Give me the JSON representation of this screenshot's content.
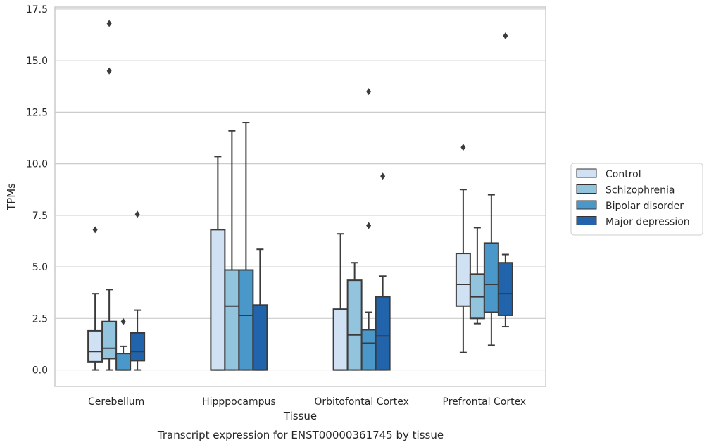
{
  "chart_data": {
    "type": "boxplot",
    "title": "",
    "caption": "Transcript expression for ENST00000361745 by tissue",
    "xlabel": "Tissue",
    "ylabel": "TPMs",
    "ylim": [
      -0.8,
      17.6
    ],
    "yticks": [
      "0.0",
      "2.5",
      "5.0",
      "7.5",
      "10.0",
      "12.5",
      "15.0",
      "17.5"
    ],
    "grid": "horizontal",
    "legend_placement": "right",
    "categories": [
      "Cerebellum",
      "Hipppocampus",
      "Orbitofontal Cortex",
      "Prefrontal Cortex"
    ],
    "series": [
      {
        "name": "Control",
        "color": "#cfe1f2",
        "boxes": [
          {
            "whisker_low": 0.0,
            "q1": 0.4,
            "median": 0.9,
            "q3": 1.9,
            "whisker_high": 3.7,
            "outliers": [
              6.8
            ]
          },
          {
            "whisker_low": 0.0,
            "q1": 0.0,
            "median": 0.0,
            "q3": 6.8,
            "whisker_high": 10.35,
            "outliers": []
          },
          {
            "whisker_low": 0.0,
            "q1": 0.0,
            "median": 0.0,
            "q3": 2.95,
            "whisker_high": 6.6,
            "outliers": []
          },
          {
            "whisker_low": 0.85,
            "q1": 3.1,
            "median": 4.15,
            "q3": 5.65,
            "whisker_high": 8.75,
            "outliers": [
              10.8
            ]
          }
        ]
      },
      {
        "name": "Schizophrenia",
        "color": "#93c4de",
        "boxes": [
          {
            "whisker_low": 0.0,
            "q1": 0.55,
            "median": 1.05,
            "q3": 2.35,
            "whisker_high": 3.9,
            "outliers": [
              16.8,
              14.5
            ]
          },
          {
            "whisker_low": 0.0,
            "q1": 0.0,
            "median": 3.1,
            "q3": 4.85,
            "whisker_high": 11.6,
            "outliers": []
          },
          {
            "whisker_low": 0.0,
            "q1": 0.0,
            "median": 1.7,
            "q3": 4.35,
            "whisker_high": 5.2,
            "outliers": []
          },
          {
            "whisker_low": 2.25,
            "q1": 2.5,
            "median": 3.55,
            "q3": 4.65,
            "whisker_high": 6.9,
            "outliers": []
          }
        ]
      },
      {
        "name": "Bipolar disorder",
        "color": "#4a98c9",
        "boxes": [
          {
            "whisker_low": 0.0,
            "q1": 0.0,
            "median": 0.0,
            "q3": 0.8,
            "whisker_high": 1.15,
            "outliers": [
              2.35
            ]
          },
          {
            "whisker_low": 0.0,
            "q1": 0.0,
            "median": 2.65,
            "q3": 4.85,
            "whisker_high": 12.0,
            "outliers": []
          },
          {
            "whisker_low": 0.0,
            "q1": 0.0,
            "median": 1.3,
            "q3": 1.95,
            "whisker_high": 2.8,
            "outliers": [
              13.5,
              7.0
            ]
          },
          {
            "whisker_low": 1.2,
            "q1": 2.8,
            "median": 4.15,
            "q3": 6.15,
            "whisker_high": 8.5,
            "outliers": []
          }
        ]
      },
      {
        "name": "Major depression",
        "color": "#2164ab",
        "boxes": [
          {
            "whisker_low": 0.0,
            "q1": 0.45,
            "median": 0.9,
            "q3": 1.8,
            "whisker_high": 2.9,
            "outliers": [
              7.55
            ]
          },
          {
            "whisker_low": 0.0,
            "q1": 0.0,
            "median": 0.0,
            "q3": 3.15,
            "whisker_high": 5.85,
            "outliers": []
          },
          {
            "whisker_low": 0.0,
            "q1": 0.0,
            "median": 1.65,
            "q3": 3.55,
            "whisker_high": 4.55,
            "outliers": [
              9.4
            ]
          },
          {
            "whisker_low": 2.1,
            "q1": 2.65,
            "median": 3.7,
            "q3": 5.2,
            "whisker_high": 5.6,
            "outliers": [
              16.2
            ]
          }
        ]
      }
    ]
  }
}
